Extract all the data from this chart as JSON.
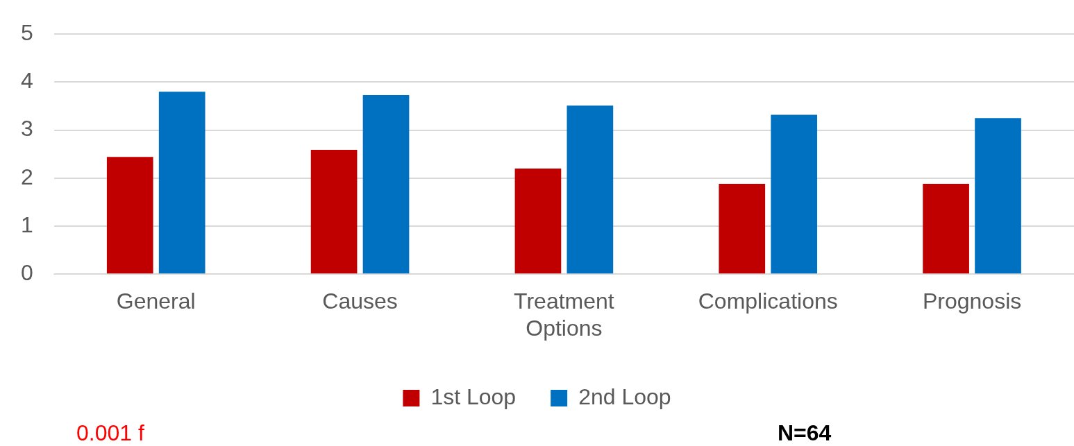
{
  "chart_data": {
    "type": "bar",
    "categories": [
      "General",
      "Causes",
      "Treatment Options",
      "Complications",
      "Prognosis"
    ],
    "series": [
      {
        "name": "1st Loop",
        "color": "#c00000",
        "values": [
          2.44,
          2.59,
          2.2,
          1.88,
          1.88
        ]
      },
      {
        "name": "2nd Loop",
        "color": "#0070c0",
        "values": [
          3.8,
          3.73,
          3.51,
          3.32,
          3.25
        ]
      }
    ],
    "ylim": [
      0,
      5
    ],
    "yticks": [
      0,
      1,
      2,
      3,
      4,
      5
    ],
    "grid": "y",
    "legend": "bottom",
    "annotations": [
      "N=64",
      "0.001 f"
    ]
  }
}
